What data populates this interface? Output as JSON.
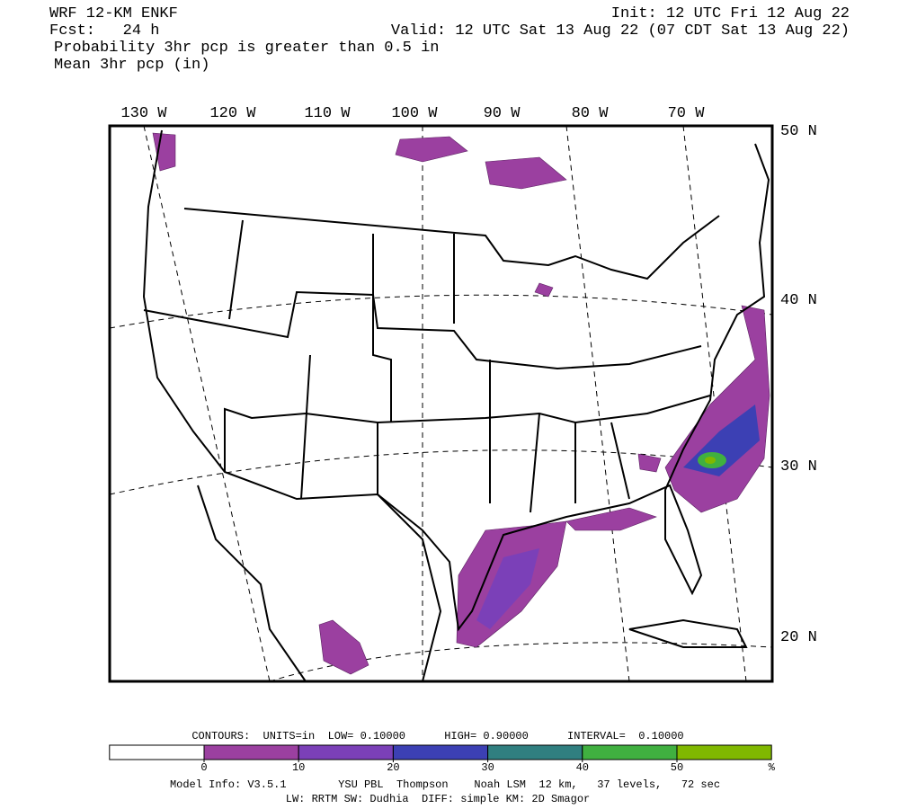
{
  "header": {
    "lines": [
      "WRF 12-KM ENKF",
      "Fcst:   24 h",
      "Probability 3hr pcp is greater than 0.5 in",
      "Mean 3hr pcp (in)"
    ],
    "init": "Init: 12 UTC Fri 12 Aug 22",
    "valid": "Valid: 12 UTC Sat 13 Aug 22 (07 CDT Sat 13 Aug 22)"
  },
  "map": {
    "lon_labels": [
      "130 W",
      "120 W",
      "110 W",
      "100 W",
      "90 W",
      "80 W",
      "70 W"
    ],
    "lat_labels": [
      "50 N",
      "40 N",
      "30 N",
      "20 N"
    ]
  },
  "colorbar": {
    "contours": "CONTOURS:  UNITS=in  LOW= 0.10000      HIGH= 0.90000      INTERVAL=  0.10000",
    "ticks": [
      0,
      10,
      20,
      30,
      40,
      50
    ],
    "unit": "%",
    "colors": [
      "#ffffff",
      "#9b40a0",
      "#7b40b8",
      "#3c40b4",
      "#307f80",
      "#40b040",
      "#80b800"
    ]
  },
  "footer": {
    "model": "Model Info: V3.5.1        YSU PBL  Thompson    Noah LSM  12 km,   37 levels,   72 sec",
    "physics": "LW: RRTM SW: Dudhia  DIFF: simple KM: 2D Smagor"
  }
}
